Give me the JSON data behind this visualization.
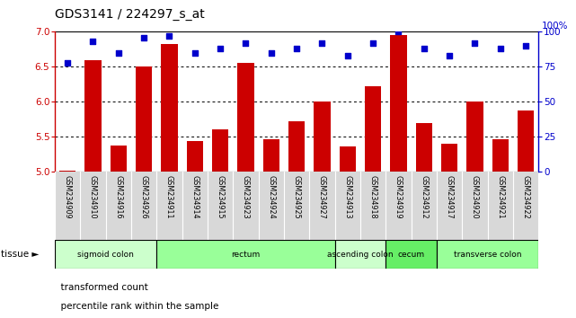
{
  "title": "GDS3141 / 224297_s_at",
  "samples": [
    "GSM234909",
    "GSM234910",
    "GSM234916",
    "GSM234926",
    "GSM234911",
    "GSM234914",
    "GSM234915",
    "GSM234923",
    "GSM234924",
    "GSM234925",
    "GSM234927",
    "GSM234913",
    "GSM234918",
    "GSM234919",
    "GSM234912",
    "GSM234917",
    "GSM234920",
    "GSM234921",
    "GSM234922"
  ],
  "bar_values": [
    5.02,
    6.6,
    5.38,
    6.5,
    6.82,
    5.44,
    5.6,
    6.56,
    5.46,
    5.72,
    6.0,
    5.36,
    6.22,
    6.95,
    5.7,
    5.4,
    6.0,
    5.46,
    5.88
  ],
  "dot_values": [
    78,
    93,
    85,
    96,
    97,
    85,
    88,
    92,
    85,
    88,
    92,
    83,
    92,
    100,
    88,
    83,
    92,
    88,
    90
  ],
  "tissues": [
    {
      "label": "sigmoid colon",
      "start": 0,
      "end": 4,
      "color": "#ccffcc"
    },
    {
      "label": "rectum",
      "start": 4,
      "end": 11,
      "color": "#99ff99"
    },
    {
      "label": "ascending colon",
      "start": 11,
      "end": 13,
      "color": "#ccffcc"
    },
    {
      "label": "cecum",
      "start": 13,
      "end": 15,
      "color": "#66ee66"
    },
    {
      "label": "transverse colon",
      "start": 15,
      "end": 19,
      "color": "#99ff99"
    }
  ],
  "bar_color": "#cc0000",
  "dot_color": "#0000cc",
  "ylim_left": [
    5.0,
    7.0
  ],
  "ylim_right": [
    0,
    100
  ],
  "yticks_left": [
    5.0,
    5.5,
    6.0,
    6.5,
    7.0
  ],
  "yticks_right": [
    0,
    25,
    50,
    75,
    100
  ],
  "gridlines": [
    5.5,
    6.0,
    6.5
  ],
  "bar_width": 0.65
}
